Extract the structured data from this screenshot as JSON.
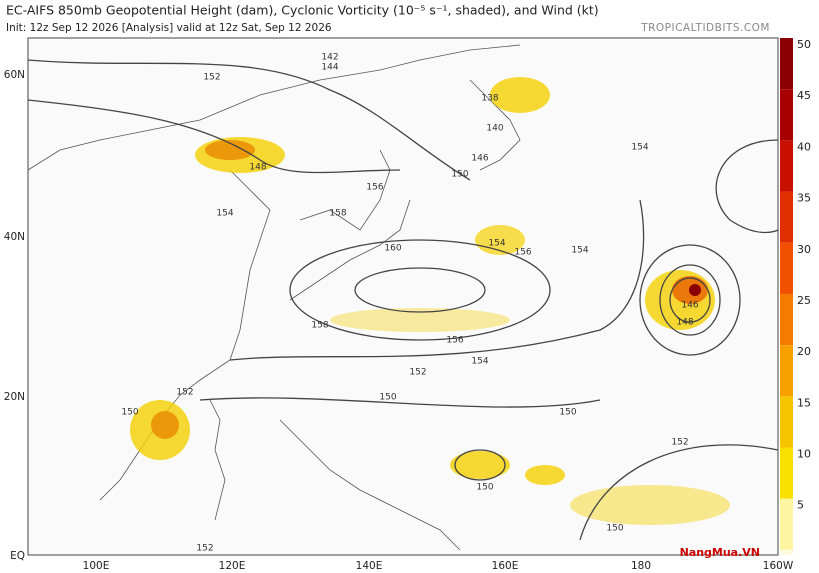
{
  "header": {
    "title": "EC-AIFS 850mb Geopotential Height (dam), Cyclonic Vorticity (10⁻⁵ s⁻¹, shaded), and Wind (kt)",
    "init": "Init: 12z Sep 12 2026   [Analysis]   valid at 12z Sat, Sep 12 2026",
    "site": "TROPICALTIDBITS.COM"
  },
  "lat_labels": [
    "60N",
    "40N",
    "20N",
    "EQ"
  ],
  "lon_labels": [
    "100E",
    "120E",
    "140E",
    "160E",
    "180",
    "160W"
  ],
  "colorbar": [
    "50",
    "45",
    "40",
    "35",
    "30",
    "25",
    "20",
    "15",
    "10",
    "5"
  ],
  "contour_labels": [
    "152",
    "142",
    "144",
    "138",
    "140",
    "146",
    "148",
    "150",
    "154",
    "156",
    "158",
    "160",
    "154",
    "156",
    "152",
    "150",
    "148",
    "146",
    "154",
    "158",
    "156",
    "154",
    "152",
    "150",
    "150",
    "152",
    "150",
    "154",
    "150",
    "152"
  ],
  "watermark": "NangMua.VN"
}
